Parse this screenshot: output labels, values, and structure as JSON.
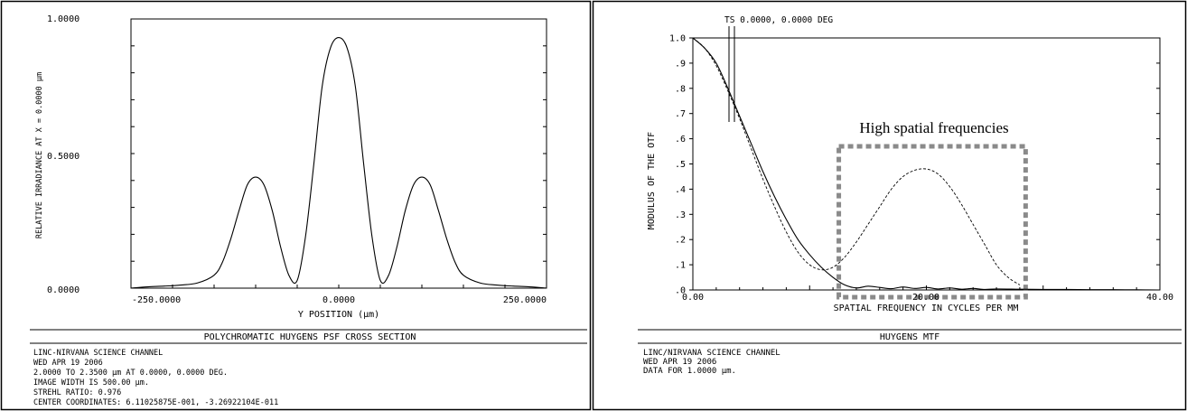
{
  "charts": [
    {
      "id": "psf",
      "footer_title": "POLYCHROMATIC HUYGENS PSF CROSS SECTION",
      "info_lines": [
        "LINC-NIRVANA SCIENCE CHANNEL",
        "WED APR 19 2006",
        "2.0000 TO 2.3500 µm AT 0.0000, 0.0000 DEG.",
        "IMAGE WIDTH IS 500.00 µm.",
        "STREHL RATIO: 0.976",
        "CENTER COORDINATES: 6.11025875E-001, -3.26922104E-011"
      ]
    },
    {
      "id": "mtf",
      "footer_title": "HUYGENS MTF",
      "info_lines": [
        "LINC/NIRVANA SCIENCE CHANNEL",
        "WED APR 19 2006",
        "DATA FOR 1.0000 µm."
      ]
    }
  ],
  "chart_data": [
    {
      "type": "line",
      "title": "POLYCHROMATIC HUYGENS PSF CROSS SECTION",
      "xlabel": "Y POSITION (µm)",
      "ylabel": "RELATIVE IRRADIANCE AT X = 0.0000 µm",
      "xlim": [
        -250,
        250
      ],
      "ylim": [
        0,
        1
      ],
      "x_tick_labels": [
        "-250.0000",
        "0.0000",
        "250.0000"
      ],
      "y_tick_labels": [
        "0.0000",
        "0.5000",
        "1.0000"
      ],
      "grid": false,
      "series": [
        {
          "x": [
            -250,
            -230,
            -210,
            -190,
            -170,
            -150,
            -140,
            -130,
            -120,
            -110,
            -100,
            -90,
            -80,
            -70,
            -60,
            -50,
            -40,
            -30,
            -20,
            -10,
            0,
            10,
            20,
            30,
            40,
            50,
            60,
            70,
            80,
            90,
            100,
            110,
            120,
            130,
            140,
            150,
            170,
            190,
            210,
            230,
            250
          ],
          "y": [
            0.0,
            0.005,
            0.008,
            0.012,
            0.02,
            0.05,
            0.1,
            0.19,
            0.3,
            0.4,
            0.43,
            0.4,
            0.3,
            0.16,
            0.05,
            0.03,
            0.2,
            0.48,
            0.78,
            0.93,
            0.97,
            0.93,
            0.78,
            0.48,
            0.2,
            0.03,
            0.05,
            0.16,
            0.3,
            0.4,
            0.43,
            0.4,
            0.3,
            0.19,
            0.1,
            0.05,
            0.02,
            0.012,
            0.008,
            0.005,
            0.0
          ]
        }
      ]
    },
    {
      "type": "line",
      "title": "HUYGENS MTF",
      "xlabel": "SPATIAL FREQUENCY IN CYCLES PER MM",
      "ylabel": "MODULUS OF THE OTF",
      "xlim": [
        0,
        40
      ],
      "ylim": [
        0,
        1
      ],
      "x_tick_labels": [
        "0.00",
        "20.00",
        "40.00"
      ],
      "y_tick_labels": [
        ".0",
        ".1",
        ".2",
        ".3",
        ".4",
        ".5",
        ".6",
        ".7",
        ".8",
        ".9",
        "1.0"
      ],
      "grid": false,
      "legend": "TS 0.0000, 0.0000 DEG",
      "annotation": "High spatial frequencies",
      "highlight_box": {
        "x_range": [
          12.5,
          28.5
        ],
        "y_range": [
          0,
          0.57
        ]
      },
      "series": [
        {
          "style": "solid",
          "x": [
            0,
            1,
            2,
            3,
            4,
            5,
            6,
            7,
            8,
            9,
            10,
            11,
            12,
            13,
            14,
            15,
            16,
            17,
            18,
            19,
            20,
            21,
            22,
            23,
            24,
            25,
            26,
            28,
            30,
            32,
            34,
            36,
            38,
            40
          ],
          "y": [
            1.0,
            0.96,
            0.9,
            0.8,
            0.69,
            0.58,
            0.47,
            0.37,
            0.28,
            0.2,
            0.14,
            0.09,
            0.05,
            0.02,
            0.008,
            0.015,
            0.01,
            0.005,
            0.012,
            0.006,
            0.01,
            0.004,
            0.008,
            0.003,
            0.006,
            0.002,
            0.004,
            0.003,
            0.002,
            0.002,
            0.001,
            0.001,
            0.0005,
            0.0
          ]
        },
        {
          "style": "dashed",
          "x": [
            0,
            1,
            2,
            3,
            4,
            5,
            6,
            7,
            8,
            9,
            10,
            11,
            12,
            13,
            14,
            15,
            16,
            17,
            18,
            19,
            20,
            21,
            22,
            23,
            24,
            25,
            26,
            27,
            28
          ],
          "y": [
            1.0,
            0.96,
            0.89,
            0.79,
            0.68,
            0.56,
            0.44,
            0.33,
            0.23,
            0.15,
            0.1,
            0.08,
            0.09,
            0.13,
            0.19,
            0.26,
            0.33,
            0.4,
            0.45,
            0.475,
            0.48,
            0.46,
            0.41,
            0.34,
            0.26,
            0.18,
            0.1,
            0.05,
            0.02
          ]
        }
      ]
    }
  ]
}
